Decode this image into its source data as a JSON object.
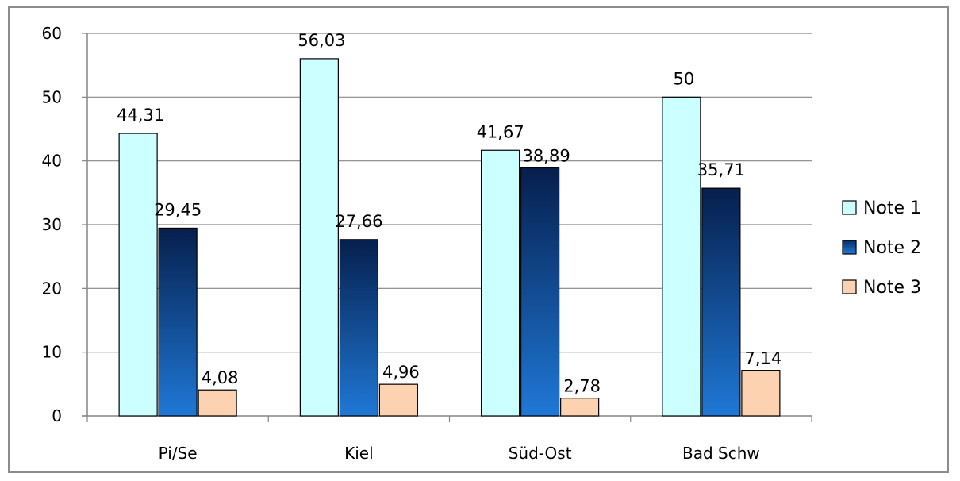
{
  "chart_data": {
    "type": "bar",
    "categories": [
      "Pi/Se",
      "Kiel",
      "Süd-Ost",
      "Bad Schw"
    ],
    "series": [
      {
        "name": "Note 1",
        "values": [
          44.31,
          56.03,
          41.67,
          50
        ],
        "labels": [
          "44,31",
          "56,03",
          "41,67",
          "50"
        ],
        "color": "#ccffff"
      },
      {
        "name": "Note 2",
        "values": [
          29.45,
          27.66,
          38.89,
          35.71
        ],
        "labels": [
          "29,45",
          "27,66",
          "38,89",
          "35,71"
        ],
        "color": "#0f4c9e"
      },
      {
        "name": "Note 3",
        "values": [
          4.08,
          4.96,
          2.78,
          7.14
        ],
        "labels": [
          "4,08",
          "4,96",
          "2,78",
          "7,14"
        ],
        "color": "#fdd2b0"
      }
    ],
    "ylim": [
      0,
      60
    ],
    "yticks": [
      0,
      10,
      20,
      30,
      40,
      50,
      60
    ],
    "grid": true,
    "legend": "right"
  }
}
